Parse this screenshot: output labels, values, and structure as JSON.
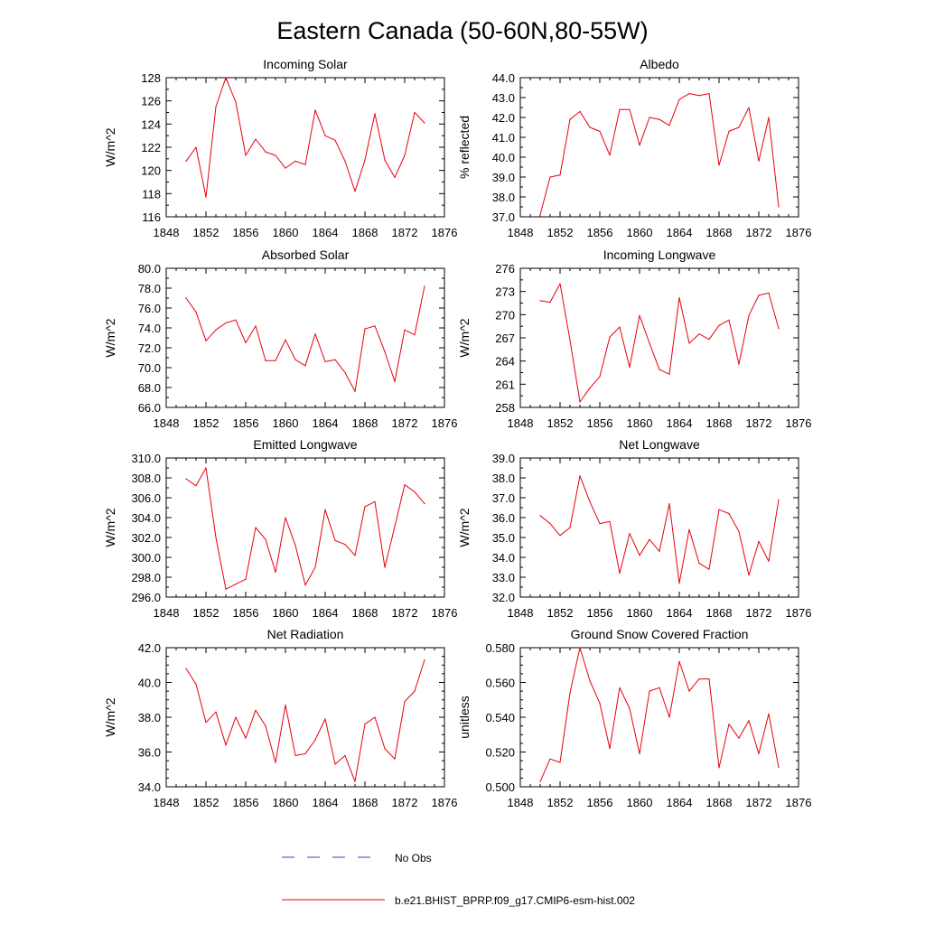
{
  "figure": {
    "title": "Eastern Canada (50-60N,80-55W)",
    "line_color": "#e8000b",
    "obs_color": "#3b3bbf"
  },
  "legend": {
    "obs_label": "No Obs",
    "model_label": "b.e21.BHIST_BPRP.f09_g17.CMIP6-esm-hist.002"
  },
  "chart_data": [
    {
      "type": "line",
      "title": "Incoming Solar",
      "ylabel": "W/m^2",
      "xlim": [
        1848,
        1876
      ],
      "xticks": [
        1848,
        1852,
        1856,
        1860,
        1864,
        1868,
        1872,
        1876
      ],
      "ylim": [
        116,
        128
      ],
      "yticks": [
        116,
        118,
        120,
        122,
        124,
        126,
        128
      ],
      "yfmt": 0,
      "minor_y": 1,
      "grid": false,
      "x": [
        1850,
        1851,
        1852,
        1853,
        1854,
        1855,
        1856,
        1857,
        1858,
        1859,
        1860,
        1861,
        1862,
        1863,
        1864,
        1865,
        1866,
        1867,
        1868,
        1869,
        1870,
        1871,
        1872,
        1873,
        1874
      ],
      "y": [
        120.8,
        122.0,
        117.7,
        125.5,
        128.0,
        125.9,
        121.3,
        122.7,
        121.6,
        121.3,
        120.2,
        120.8,
        120.5,
        125.2,
        123.0,
        122.6,
        120.8,
        118.2,
        120.9,
        124.9,
        120.9,
        119.4,
        121.3,
        125.0,
        124.1
      ]
    },
    {
      "type": "line",
      "title": "Albedo",
      "ylabel": "% reflected",
      "xlim": [
        1848,
        1876
      ],
      "xticks": [
        1848,
        1852,
        1856,
        1860,
        1864,
        1868,
        1872,
        1876
      ],
      "ylim": [
        37,
        44
      ],
      "yticks": [
        37,
        38,
        39,
        40,
        41,
        42,
        43,
        44
      ],
      "yfmt": 1,
      "minor_y": 0.5,
      "grid": false,
      "x": [
        1850,
        1851,
        1852,
        1853,
        1854,
        1855,
        1856,
        1857,
        1858,
        1859,
        1860,
        1861,
        1862,
        1863,
        1864,
        1865,
        1866,
        1867,
        1868,
        1869,
        1870,
        1871,
        1872,
        1873,
        1874
      ],
      "y": [
        37.1,
        39.0,
        39.1,
        41.9,
        42.3,
        41.5,
        41.3,
        40.1,
        42.4,
        42.4,
        40.6,
        42.0,
        41.9,
        41.6,
        42.9,
        43.2,
        43.1,
        43.2,
        39.6,
        41.3,
        41.5,
        42.5,
        39.8,
        42.0,
        37.5
      ]
    },
    {
      "type": "line",
      "title": "Absorbed Solar",
      "ylabel": "W/m^2",
      "xlim": [
        1848,
        1876
      ],
      "xticks": [
        1848,
        1852,
        1856,
        1860,
        1864,
        1868,
        1872,
        1876
      ],
      "ylim": [
        66,
        80
      ],
      "yticks": [
        66,
        68,
        70,
        72,
        74,
        76,
        78,
        80
      ],
      "yfmt": 1,
      "minor_y": 1,
      "grid": false,
      "x": [
        1850,
        1851,
        1852,
        1853,
        1854,
        1855,
        1856,
        1857,
        1858,
        1859,
        1860,
        1861,
        1862,
        1863,
        1864,
        1865,
        1866,
        1867,
        1868,
        1869,
        1870,
        1871,
        1872,
        1873,
        1874
      ],
      "y": [
        77.0,
        75.6,
        72.7,
        73.8,
        74.5,
        74.8,
        72.5,
        74.2,
        70.7,
        70.7,
        72.8,
        70.8,
        70.2,
        73.4,
        70.6,
        70.8,
        69.5,
        67.6,
        73.9,
        74.2,
        71.6,
        68.6,
        73.8,
        73.3,
        78.2
      ]
    },
    {
      "type": "line",
      "title": "Incoming Longwave",
      "ylabel": "W/m^2",
      "xlim": [
        1848,
        1876
      ],
      "xticks": [
        1848,
        1852,
        1856,
        1860,
        1864,
        1868,
        1872,
        1876
      ],
      "ylim": [
        258,
        276
      ],
      "yticks": [
        258,
        261,
        264,
        267,
        270,
        273,
        276
      ],
      "yfmt": 0,
      "minor_y": 1.5,
      "grid": false,
      "x": [
        1850,
        1851,
        1852,
        1853,
        1854,
        1855,
        1856,
        1857,
        1858,
        1859,
        1860,
        1861,
        1862,
        1863,
        1864,
        1865,
        1866,
        1867,
        1868,
        1869,
        1870,
        1871,
        1872,
        1873,
        1874
      ],
      "y": [
        271.8,
        271.6,
        274.0,
        266.7,
        258.7,
        260.5,
        262.0,
        267.1,
        268.4,
        263.2,
        269.9,
        266.3,
        262.9,
        262.3,
        272.2,
        266.3,
        267.5,
        266.8,
        268.6,
        269.3,
        263.6,
        269.9,
        272.5,
        272.8,
        268.2
      ]
    },
    {
      "type": "line",
      "title": "Emitted Longwave",
      "ylabel": "W/m^2",
      "xlim": [
        1848,
        1876
      ],
      "xticks": [
        1848,
        1852,
        1856,
        1860,
        1864,
        1868,
        1872,
        1876
      ],
      "ylim": [
        296,
        310
      ],
      "yticks": [
        296,
        298,
        300,
        302,
        304,
        306,
        308,
        310
      ],
      "yfmt": 1,
      "minor_y": 1,
      "grid": false,
      "x": [
        1850,
        1851,
        1852,
        1853,
        1854,
        1855,
        1856,
        1857,
        1858,
        1859,
        1860,
        1861,
        1862,
        1863,
        1864,
        1865,
        1866,
        1867,
        1868,
        1869,
        1870,
        1871,
        1872,
        1873,
        1874
      ],
      "y": [
        307.9,
        307.2,
        309.0,
        302.0,
        296.8,
        297.3,
        297.8,
        303.0,
        301.8,
        298.5,
        304.0,
        301.2,
        297.2,
        299.0,
        304.8,
        301.7,
        301.3,
        300.2,
        305.1,
        305.6,
        299.0,
        303.1,
        307.3,
        306.6,
        305.4
      ]
    },
    {
      "type": "line",
      "title": "Net Longwave",
      "ylabel": "W/m^2",
      "xlim": [
        1848,
        1876
      ],
      "xticks": [
        1848,
        1852,
        1856,
        1860,
        1864,
        1868,
        1872,
        1876
      ],
      "ylim": [
        32,
        39
      ],
      "yticks": [
        32,
        33,
        34,
        35,
        36,
        37,
        38,
        39
      ],
      "yfmt": 1,
      "minor_y": 0.5,
      "grid": false,
      "x": [
        1850,
        1851,
        1852,
        1853,
        1854,
        1855,
        1856,
        1857,
        1858,
        1859,
        1860,
        1861,
        1862,
        1863,
        1864,
        1865,
        1866,
        1867,
        1868,
        1869,
        1870,
        1871,
        1872,
        1873,
        1874
      ],
      "y": [
        36.1,
        35.7,
        35.1,
        35.5,
        38.1,
        36.8,
        35.7,
        35.8,
        33.2,
        35.2,
        34.1,
        34.9,
        34.3,
        36.7,
        32.7,
        35.4,
        33.7,
        33.4,
        36.4,
        36.2,
        35.3,
        33.1,
        34.8,
        33.8,
        36.9
      ]
    },
    {
      "type": "line",
      "title": "Net Radiation",
      "ylabel": "W/m^2",
      "xlim": [
        1848,
        1876
      ],
      "xticks": [
        1848,
        1852,
        1856,
        1860,
        1864,
        1868,
        1872,
        1876
      ],
      "ylim": [
        34,
        42
      ],
      "yticks": [
        34,
        36,
        38,
        40,
        42
      ],
      "yfmt": 1,
      "minor_y": 0.5,
      "grid": false,
      "x": [
        1850,
        1851,
        1852,
        1853,
        1854,
        1855,
        1856,
        1857,
        1858,
        1859,
        1860,
        1861,
        1862,
        1863,
        1864,
        1865,
        1866,
        1867,
        1868,
        1869,
        1870,
        1871,
        1872,
        1873,
        1874
      ],
      "y": [
        40.8,
        39.9,
        37.7,
        38.3,
        36.4,
        38.0,
        36.8,
        38.4,
        37.5,
        35.4,
        38.7,
        35.8,
        35.9,
        36.7,
        37.9,
        35.3,
        35.8,
        34.3,
        37.6,
        38.0,
        36.2,
        35.6,
        38.9,
        39.5,
        41.3
      ]
    },
    {
      "type": "line",
      "title": "Ground Snow Covered Fraction",
      "ylabel": "unitless",
      "xlim": [
        1848,
        1876
      ],
      "xticks": [
        1848,
        1852,
        1856,
        1860,
        1864,
        1868,
        1872,
        1876
      ],
      "ylim": [
        0.5,
        0.58
      ],
      "yticks": [
        0.5,
        0.52,
        0.54,
        0.56,
        0.58
      ],
      "yfmt": 3,
      "minor_y": 0.005,
      "grid": false,
      "x": [
        1850,
        1851,
        1852,
        1853,
        1854,
        1855,
        1856,
        1857,
        1858,
        1859,
        1860,
        1861,
        1862,
        1863,
        1864,
        1865,
        1866,
        1867,
        1868,
        1869,
        1870,
        1871,
        1872,
        1873,
        1874
      ],
      "y": [
        0.503,
        0.516,
        0.514,
        0.554,
        0.58,
        0.561,
        0.548,
        0.522,
        0.557,
        0.545,
        0.519,
        0.555,
        0.557,
        0.54,
        0.572,
        0.555,
        0.562,
        0.562,
        0.511,
        0.536,
        0.528,
        0.538,
        0.519,
        0.542,
        0.511
      ]
    }
  ]
}
